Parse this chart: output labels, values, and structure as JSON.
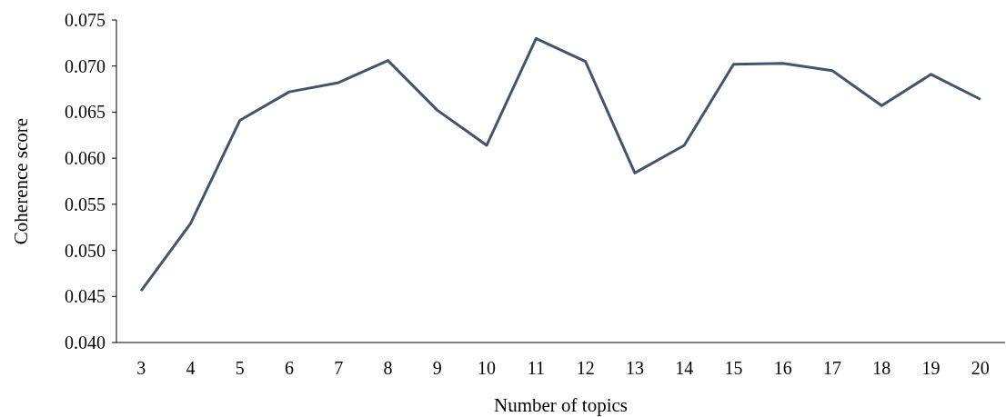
{
  "chart_data": {
    "type": "line",
    "xlabel": "Number of topics",
    "ylabel": "Coherence score",
    "categories": [
      "3",
      "4",
      "5",
      "6",
      "7",
      "8",
      "9",
      "10",
      "11",
      "12",
      "13",
      "14",
      "15",
      "16",
      "17",
      "18",
      "19",
      "20"
    ],
    "series": [
      {
        "color": "#44546a",
        "values": [
          0.0456,
          0.0529,
          0.0641,
          0.0672,
          0.0682,
          0.0706,
          0.0652,
          0.0614,
          0.073,
          0.0705,
          0.0584,
          0.0614,
          0.0702,
          0.0703,
          0.0695,
          0.0657,
          0.0691,
          0.0664
        ]
      }
    ],
    "ylim": [
      0.04,
      0.075
    ],
    "yticks": [
      {
        "value": 0.04,
        "label": "0.040"
      },
      {
        "value": 0.045,
        "label": "0.045"
      },
      {
        "value": 0.05,
        "label": "0.050"
      },
      {
        "value": 0.055,
        "label": "0.055"
      },
      {
        "value": 0.06,
        "label": "0.060"
      },
      {
        "value": 0.065,
        "label": "0.065"
      },
      {
        "value": 0.07,
        "label": "0.070"
      },
      {
        "value": 0.075,
        "label": "0.075"
      }
    ],
    "marker": "none",
    "line_style": "solid"
  }
}
